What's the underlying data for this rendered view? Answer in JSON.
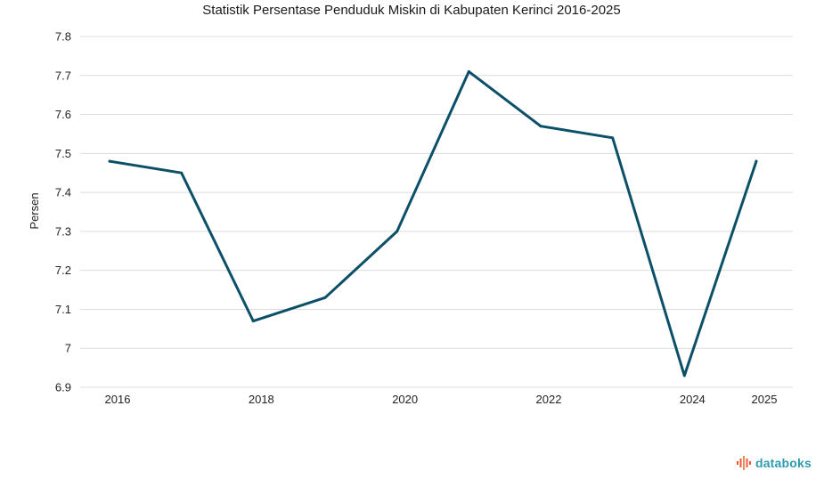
{
  "chart_data": {
    "type": "line",
    "title": "Statistik Persentase Penduduk Miskin di Kabupaten Kerinci 2016-2025",
    "xlabel": "",
    "ylabel": "Persen",
    "ylim": [
      6.9,
      7.8
    ],
    "yticks": [
      6.9,
      7,
      7.1,
      7.2,
      7.3,
      7.4,
      7.5,
      7.6,
      7.7,
      7.8
    ],
    "ytick_labels": [
      "6.9",
      "7",
      "7.1",
      "7.2",
      "7.3",
      "7.4",
      "7.5",
      "7.6",
      "7.7",
      "7.8"
    ],
    "xlim": [
      2016,
      2025
    ],
    "xticks": [
      2016,
      2018,
      2020,
      2022,
      2024,
      2025
    ],
    "xtick_labels": [
      "2016",
      "2018",
      "2020",
      "2022",
      "2024",
      "2025"
    ],
    "grid": true,
    "series": [
      {
        "name": "Persen",
        "color": "#0b5068",
        "x": [
          2016,
          2017,
          2018,
          2019,
          2020,
          2021,
          2022,
          2023,
          2024,
          2025
        ],
        "values": [
          7.48,
          7.45,
          7.07,
          7.13,
          7.3,
          7.71,
          7.57,
          7.54,
          6.93,
          7.48
        ]
      }
    ]
  },
  "brand": {
    "name": "databoks",
    "color": "#2e9bb0",
    "icon_color": "#e9573f"
  }
}
